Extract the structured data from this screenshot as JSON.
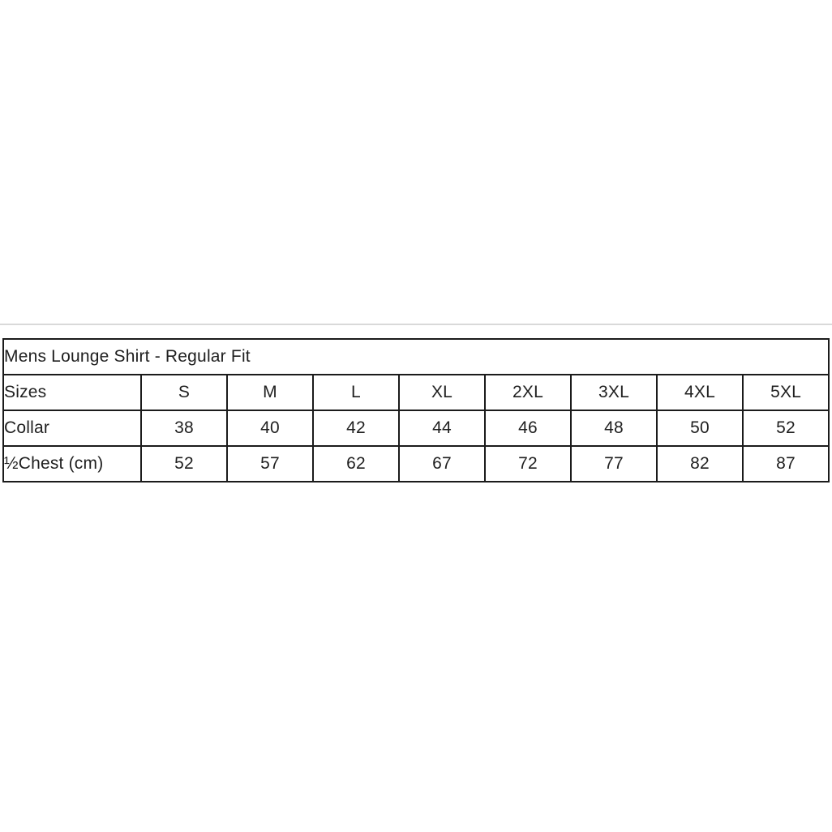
{
  "colors": {
    "background": "#ffffff",
    "table_border": "#1b1b1b",
    "text": "#1f1f1f",
    "faint_divider": "#d9d9d9"
  },
  "chart_data": {
    "type": "table",
    "title": "Mens Lounge Shirt - Regular Fit",
    "columns": [
      "Sizes",
      "S",
      "M",
      "L",
      "XL",
      "2XL",
      "3XL",
      "4XL",
      "5XL"
    ],
    "rows": [
      [
        "Collar",
        "38",
        "40",
        "42",
        "44",
        "46",
        "48",
        "50",
        "52"
      ],
      [
        "½Chest (cm)",
        "52",
        "57",
        "62",
        "67",
        "72",
        "77",
        "82",
        "87"
      ]
    ]
  }
}
